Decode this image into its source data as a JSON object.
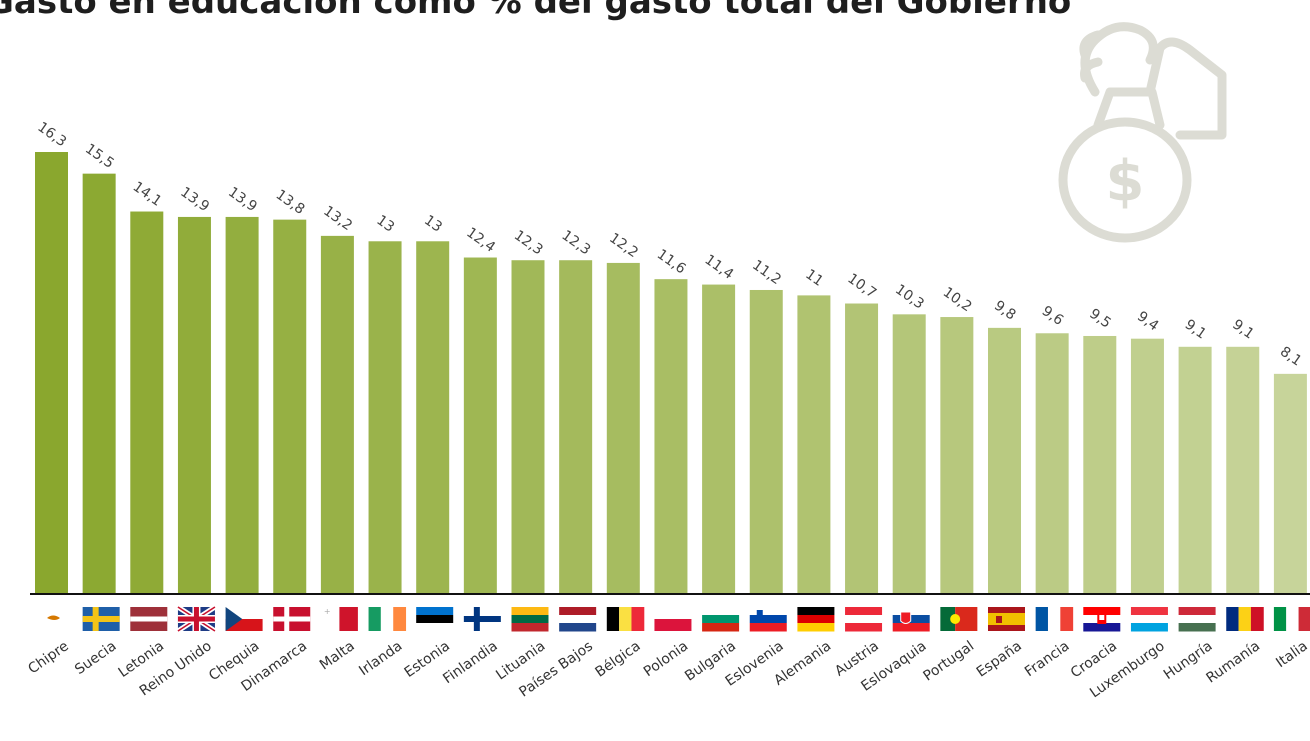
{
  "chart_data": {
    "type": "bar",
    "title": "Gasto en educación como % del gasto total del Gobierno",
    "categories": [
      "Chipre",
      "Suecia",
      "Letonia",
      "Reino Unido",
      "Chequia",
      "Dinamarca",
      "Malta",
      "Irlanda",
      "Estonia",
      "Finlandia",
      "Lituania",
      "Países Bajos",
      "Bélgica",
      "Polonia",
      "Bulgaria",
      "Eslovenia",
      "Alemania",
      "Austria",
      "Eslovaquia",
      "Portugal",
      "España",
      "Francia",
      "Croacia",
      "Luxemburgo",
      "Hungría",
      "Rumanía",
      "Italia"
    ],
    "values": [
      16.3,
      15.5,
      14.1,
      13.9,
      13.9,
      13.8,
      13.2,
      13,
      13,
      12.4,
      12.3,
      12.3,
      12.2,
      11.6,
      11.4,
      11.2,
      11,
      10.7,
      10.3,
      10.2,
      9.8,
      9.6,
      9.5,
      9.4,
      9.1,
      9.1,
      8.1
    ],
    "value_labels": [
      "16,3",
      "15,5",
      "14,1",
      "13,9",
      "13,9",
      "13,8",
      "13,2",
      "13",
      "13",
      "12,4",
      "12,3",
      "12,3",
      "12,2",
      "11,6",
      "11,4",
      "11,2",
      "11",
      "10,7",
      "10,3",
      "10,2",
      "9,8",
      "9,6",
      "9,5",
      "9,4",
      "9,1",
      "9,1",
      "8,1"
    ],
    "ylim": [
      0,
      16.3
    ],
    "grid": false,
    "legend": "none",
    "colors": {
      "bar_start": "#8aa72e",
      "bar_end": "#c7d49a",
      "axis": "#111111",
      "icon": "#dcdcd4"
    },
    "flags": [
      "cyprus-flag",
      "sweden-flag",
      "latvia-flag",
      "uk-flag",
      "czechia-flag",
      "denmark-flag",
      "malta-flag",
      "ireland-flag",
      "estonia-flag",
      "finland-flag",
      "lithuania-flag",
      "netherlands-flag",
      "belgium-flag",
      "poland-flag",
      "bulgaria-flag",
      "slovenia-flag",
      "germany-flag",
      "austria-flag",
      "slovakia-flag",
      "portugal-flag",
      "spain-flag",
      "france-flag",
      "croatia-flag",
      "luxembourg-flag",
      "hungary-flag",
      "romania-flag",
      "italy-flag"
    ]
  },
  "icons": {
    "decoration": "money-bag-hand-icon"
  }
}
